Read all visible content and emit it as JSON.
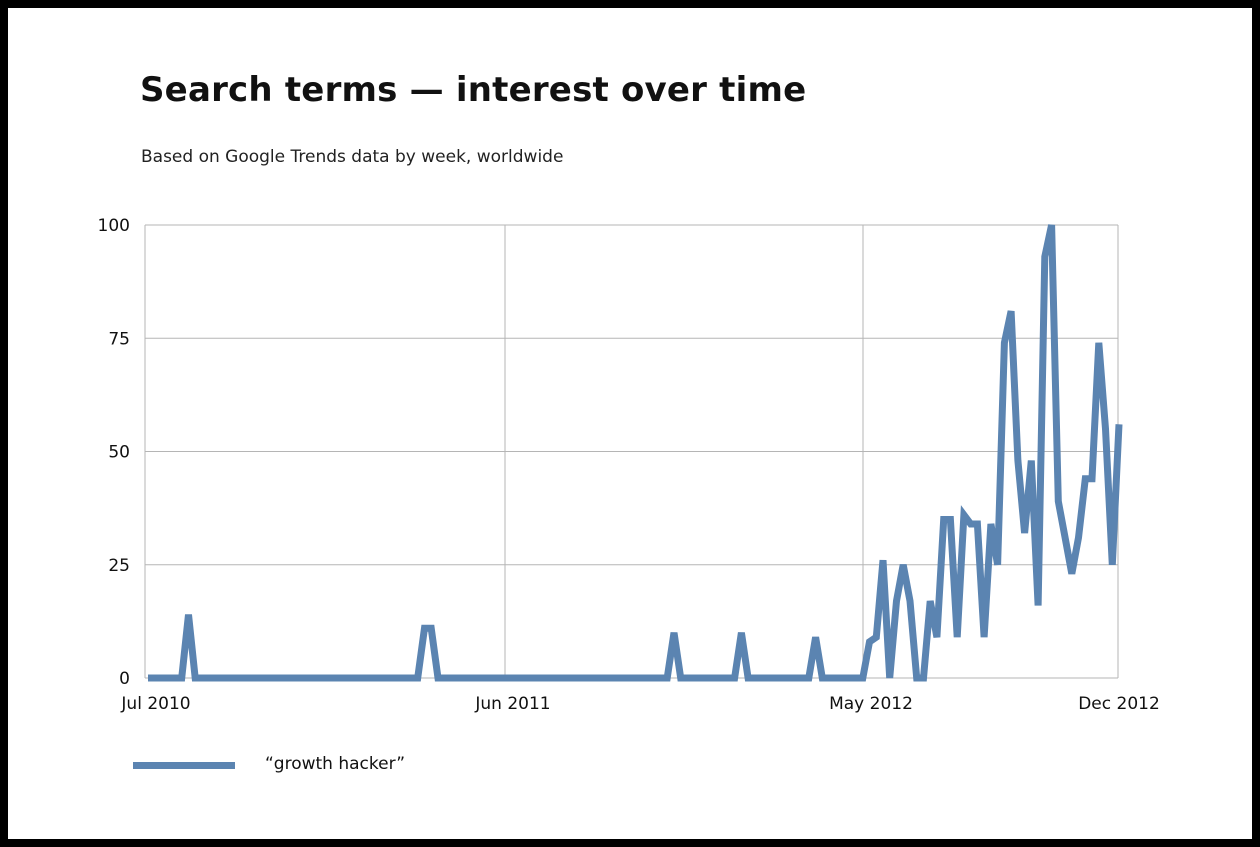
{
  "title": "Search terms — interest over time",
  "subtitle": "Based on Google Trends data by week, worldwide",
  "colors": {
    "series": "#5b84b1",
    "grid": "#b5b5b5",
    "background": "#ffffff"
  },
  "chart_data": {
    "type": "line",
    "x_tick_labels": [
      "Jul 2010",
      "Jun 2011",
      "May 2012",
      "Dec 2012"
    ],
    "y_ticks": [
      0,
      25,
      50,
      75,
      100
    ],
    "ylim": [
      0,
      100
    ],
    "grid": true,
    "legend_position": "bottom-left",
    "series": [
      {
        "name": "“growth hacker”",
        "values": [
          0,
          0,
          0,
          0,
          0,
          0,
          14,
          0,
          0,
          0,
          0,
          0,
          0,
          0,
          0,
          0,
          0,
          0,
          0,
          0,
          0,
          0,
          0,
          0,
          0,
          0,
          0,
          0,
          0,
          0,
          0,
          0,
          0,
          0,
          0,
          0,
          0,
          0,
          0,
          0,
          0,
          11,
          11,
          0,
          0,
          0,
          0,
          0,
          0,
          0,
          0,
          0,
          0,
          0,
          0,
          0,
          0,
          0,
          0,
          0,
          0,
          0,
          0,
          0,
          0,
          0,
          0,
          0,
          0,
          0,
          0,
          0,
          0,
          0,
          0,
          0,
          0,
          0,
          10,
          0,
          0,
          0,
          0,
          0,
          0,
          0,
          0,
          0,
          10,
          0,
          0,
          0,
          0,
          0,
          0,
          0,
          0,
          0,
          0,
          9,
          0,
          0,
          0,
          0,
          0,
          0,
          0,
          8,
          9,
          26,
          0,
          17,
          25,
          17,
          0,
          0,
          17,
          9,
          35,
          35,
          9,
          36,
          34,
          34,
          9,
          34,
          25,
          74,
          81,
          48,
          32,
          48,
          16,
          93,
          100,
          39,
          31,
          23,
          31,
          44,
          44,
          74,
          55,
          25,
          56
        ]
      }
    ]
  }
}
